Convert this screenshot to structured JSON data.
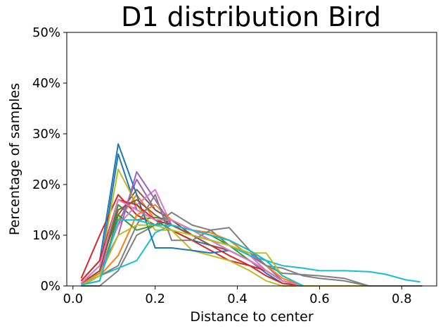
{
  "chart_data": {
    "type": "line",
    "title": "D1 distribution Bird",
    "xlabel": "Distance to center",
    "ylabel": "Percentage of samples",
    "xlim": [
      -0.015,
      0.885
    ],
    "ylim": [
      0,
      50
    ],
    "xticks": [
      0.0,
      0.2,
      0.4,
      0.6,
      0.8
    ],
    "xtick_labels": [
      "0.0",
      "0.2",
      "0.4",
      "0.6",
      "0.8"
    ],
    "yticks": [
      0,
      10,
      20,
      30,
      40,
      50
    ],
    "ytick_labels": [
      "0%",
      "10%",
      "20%",
      "30%",
      "40%",
      "50%"
    ],
    "grid": false,
    "legend": "none",
    "series": [
      {
        "color": "#1f77b4",
        "points": [
          [
            0.02,
            0.5
          ],
          [
            0.065,
            3
          ],
          [
            0.11,
            26
          ],
          [
            0.155,
            15
          ],
          [
            0.2,
            13
          ],
          [
            0.24,
            11
          ],
          [
            0.29,
            9
          ],
          [
            0.335,
            8
          ],
          [
            0.38,
            7
          ],
          [
            0.43,
            5
          ],
          [
            0.47,
            2.5
          ],
          [
            0.51,
            0.5
          ],
          [
            0.56,
            0
          ]
        ]
      },
      {
        "color": "#ff7f0e",
        "points": [
          [
            0.02,
            0.5
          ],
          [
            0.065,
            2.5
          ],
          [
            0.11,
            13
          ],
          [
            0.155,
            18
          ],
          [
            0.2,
            13
          ],
          [
            0.24,
            13
          ],
          [
            0.29,
            11
          ],
          [
            0.335,
            10
          ],
          [
            0.38,
            9
          ],
          [
            0.43,
            6
          ],
          [
            0.47,
            3
          ],
          [
            0.51,
            1
          ],
          [
            0.56,
            0
          ]
        ]
      },
      {
        "color": "#2ca02c",
        "points": [
          [
            0.02,
            0.5
          ],
          [
            0.065,
            3
          ],
          [
            0.11,
            16
          ],
          [
            0.155,
            13
          ],
          [
            0.2,
            13.5
          ],
          [
            0.24,
            13
          ],
          [
            0.29,
            11
          ],
          [
            0.335,
            10
          ],
          [
            0.38,
            8
          ],
          [
            0.43,
            5
          ],
          [
            0.47,
            3
          ],
          [
            0.51,
            1
          ],
          [
            0.56,
            0
          ]
        ]
      },
      {
        "color": "#d62728",
        "points": [
          [
            0.02,
            1.5
          ],
          [
            0.065,
            10
          ],
          [
            0.11,
            18
          ],
          [
            0.155,
            14
          ],
          [
            0.2,
            12
          ],
          [
            0.24,
            11
          ],
          [
            0.29,
            9
          ],
          [
            0.335,
            7
          ],
          [
            0.38,
            5
          ],
          [
            0.43,
            4
          ],
          [
            0.47,
            2
          ],
          [
            0.51,
            0.5
          ],
          [
            0.56,
            0
          ]
        ]
      },
      {
        "color": "#9467bd",
        "points": [
          [
            0.02,
            0.5
          ],
          [
            0.065,
            3
          ],
          [
            0.11,
            12
          ],
          [
            0.155,
            21
          ],
          [
            0.2,
            15
          ],
          [
            0.24,
            13
          ],
          [
            0.29,
            10
          ],
          [
            0.335,
            9
          ],
          [
            0.38,
            8
          ],
          [
            0.43,
            6
          ],
          [
            0.47,
            4
          ],
          [
            0.51,
            1
          ],
          [
            0.56,
            0
          ]
        ]
      },
      {
        "color": "#8c564b",
        "points": [
          [
            0.02,
            0.5
          ],
          [
            0.065,
            4
          ],
          [
            0.11,
            14
          ],
          [
            0.155,
            19
          ],
          [
            0.2,
            15
          ],
          [
            0.24,
            13
          ],
          [
            0.29,
            10
          ],
          [
            0.335,
            9
          ],
          [
            0.38,
            7
          ],
          [
            0.43,
            5
          ],
          [
            0.47,
            3
          ],
          [
            0.51,
            1
          ],
          [
            0.56,
            0
          ]
        ]
      },
      {
        "color": "#e377c2",
        "points": [
          [
            0.02,
            0.5
          ],
          [
            0.065,
            3
          ],
          [
            0.11,
            12
          ],
          [
            0.155,
            16
          ],
          [
            0.2,
            19
          ],
          [
            0.24,
            12
          ],
          [
            0.29,
            10
          ],
          [
            0.335,
            9
          ],
          [
            0.38,
            8
          ],
          [
            0.43,
            6
          ],
          [
            0.47,
            3
          ],
          [
            0.51,
            1
          ],
          [
            0.56,
            0
          ]
        ]
      },
      {
        "color": "#7f7f7f",
        "points": [
          [
            0.02,
            0
          ],
          [
            0.065,
            0
          ],
          [
            0.11,
            3
          ],
          [
            0.155,
            10
          ],
          [
            0.2,
            12
          ],
          [
            0.24,
            14.5
          ],
          [
            0.29,
            12
          ],
          [
            0.335,
            11
          ],
          [
            0.38,
            8
          ],
          [
            0.43,
            6.5
          ],
          [
            0.47,
            4
          ],
          [
            0.51,
            2.5
          ],
          [
            0.6,
            2
          ],
          [
            0.66,
            1.5
          ],
          [
            0.72,
            0
          ],
          [
            0.85,
            0
          ]
        ]
      },
      {
        "color": "#bcbd22",
        "points": [
          [
            0.02,
            0
          ],
          [
            0.065,
            3
          ],
          [
            0.11,
            23
          ],
          [
            0.155,
            16
          ],
          [
            0.2,
            11
          ],
          [
            0.24,
            11
          ],
          [
            0.29,
            7
          ],
          [
            0.335,
            6
          ],
          [
            0.38,
            5
          ],
          [
            0.43,
            3
          ],
          [
            0.47,
            1
          ],
          [
            0.51,
            0
          ],
          [
            0.85,
            0
          ]
        ]
      },
      {
        "color": "#17becf",
        "points": [
          [
            0.02,
            0
          ],
          [
            0.065,
            2
          ],
          [
            0.11,
            3.5
          ],
          [
            0.155,
            5
          ],
          [
            0.2,
            10.5
          ],
          [
            0.24,
            12
          ],
          [
            0.29,
            10
          ],
          [
            0.335,
            9
          ],
          [
            0.38,
            8
          ],
          [
            0.43,
            6
          ],
          [
            0.47,
            5
          ],
          [
            0.51,
            4
          ],
          [
            0.56,
            3.5
          ],
          [
            0.6,
            3
          ],
          [
            0.66,
            3
          ],
          [
            0.72,
            2.8
          ],
          [
            0.76,
            2.3
          ],
          [
            0.81,
            1.2
          ],
          [
            0.845,
            0.8
          ]
        ]
      },
      {
        "color": "#1f77b4",
        "points": [
          [
            0.02,
            1
          ],
          [
            0.065,
            5
          ],
          [
            0.11,
            28
          ],
          [
            0.155,
            18
          ],
          [
            0.2,
            7.5
          ],
          [
            0.24,
            7.5
          ],
          [
            0.29,
            7
          ],
          [
            0.335,
            6.5
          ],
          [
            0.38,
            7
          ],
          [
            0.43,
            5
          ],
          [
            0.47,
            3
          ],
          [
            0.51,
            1
          ],
          [
            0.56,
            0
          ]
        ]
      },
      {
        "color": "#ff7f0e",
        "points": [
          [
            0.02,
            0.5
          ],
          [
            0.065,
            2
          ],
          [
            0.11,
            6
          ],
          [
            0.155,
            14
          ],
          [
            0.2,
            16
          ],
          [
            0.24,
            13
          ],
          [
            0.29,
            11
          ],
          [
            0.335,
            10.5
          ],
          [
            0.38,
            9
          ],
          [
            0.43,
            7
          ],
          [
            0.47,
            4
          ],
          [
            0.51,
            1.5
          ],
          [
            0.56,
            0
          ]
        ]
      },
      {
        "color": "#2ca02c",
        "points": [
          [
            0.02,
            0.2
          ],
          [
            0.065,
            1
          ],
          [
            0.11,
            14
          ],
          [
            0.155,
            11
          ],
          [
            0.2,
            12
          ],
          [
            0.24,
            13
          ],
          [
            0.29,
            11
          ],
          [
            0.335,
            10
          ],
          [
            0.38,
            9
          ],
          [
            0.43,
            7
          ],
          [
            0.47,
            5
          ],
          [
            0.51,
            2
          ],
          [
            0.56,
            0
          ]
        ]
      },
      {
        "color": "#d62728",
        "points": [
          [
            0.02,
            1
          ],
          [
            0.065,
            5
          ],
          [
            0.11,
            17
          ],
          [
            0.155,
            16
          ],
          [
            0.2,
            13
          ],
          [
            0.24,
            12
          ],
          [
            0.29,
            10
          ],
          [
            0.335,
            8
          ],
          [
            0.38,
            6
          ],
          [
            0.43,
            4
          ],
          [
            0.47,
            3
          ],
          [
            0.51,
            1
          ],
          [
            0.56,
            0
          ]
        ]
      },
      {
        "color": "#9467bd",
        "points": [
          [
            0.02,
            0.5
          ],
          [
            0.065,
            3
          ],
          [
            0.11,
            10
          ],
          [
            0.155,
            22.5
          ],
          [
            0.2,
            17
          ],
          [
            0.24,
            12
          ],
          [
            0.29,
            11
          ],
          [
            0.335,
            9
          ],
          [
            0.38,
            7
          ],
          [
            0.43,
            5
          ],
          [
            0.47,
            3
          ],
          [
            0.51,
            1
          ],
          [
            0.56,
            0
          ]
        ]
      },
      {
        "color": "#8c564b",
        "points": [
          [
            0.02,
            0.5
          ],
          [
            0.065,
            3
          ],
          [
            0.11,
            15
          ],
          [
            0.155,
            17
          ],
          [
            0.2,
            14
          ],
          [
            0.24,
            12
          ],
          [
            0.29,
            10
          ],
          [
            0.335,
            8
          ],
          [
            0.38,
            7
          ],
          [
            0.43,
            5
          ],
          [
            0.47,
            3
          ],
          [
            0.51,
            1
          ],
          [
            0.56,
            0
          ]
        ]
      },
      {
        "color": "#e377c2",
        "points": [
          [
            0.02,
            0.5
          ],
          [
            0.065,
            4
          ],
          [
            0.11,
            17
          ],
          [
            0.155,
            15
          ],
          [
            0.2,
            13
          ],
          [
            0.24,
            13
          ],
          [
            0.29,
            11
          ],
          [
            0.335,
            9
          ],
          [
            0.38,
            7
          ],
          [
            0.43,
            5
          ],
          [
            0.47,
            3
          ],
          [
            0.51,
            1
          ],
          [
            0.56,
            0
          ]
        ]
      },
      {
        "color": "#7f7f7f",
        "points": [
          [
            0.02,
            0.2
          ],
          [
            0.065,
            2
          ],
          [
            0.11,
            4
          ],
          [
            0.155,
            12
          ],
          [
            0.2,
            18
          ],
          [
            0.24,
            9
          ],
          [
            0.29,
            9
          ],
          [
            0.335,
            11
          ],
          [
            0.38,
            11.5
          ],
          [
            0.43,
            7
          ],
          [
            0.47,
            4
          ],
          [
            0.51,
            3.5
          ],
          [
            0.56,
            2
          ],
          [
            0.6,
            1.5
          ],
          [
            0.66,
            1
          ],
          [
            0.72,
            0
          ],
          [
            0.85,
            0
          ]
        ]
      },
      {
        "color": "#bcbd22",
        "points": [
          [
            0.02,
            0.2
          ],
          [
            0.065,
            2
          ],
          [
            0.11,
            10
          ],
          [
            0.155,
            12
          ],
          [
            0.2,
            12
          ],
          [
            0.24,
            11
          ],
          [
            0.29,
            10
          ],
          [
            0.335,
            9
          ],
          [
            0.38,
            8
          ],
          [
            0.43,
            6.5
          ],
          [
            0.47,
            6.5
          ],
          [
            0.51,
            2
          ],
          [
            0.56,
            0
          ]
        ]
      },
      {
        "color": "#17becf",
        "points": [
          [
            0.02,
            0.2
          ],
          [
            0.065,
            1
          ],
          [
            0.11,
            13
          ],
          [
            0.155,
            13
          ],
          [
            0.2,
            12
          ],
          [
            0.24,
            12
          ],
          [
            0.29,
            11
          ],
          [
            0.335,
            10
          ],
          [
            0.38,
            9
          ],
          [
            0.43,
            7
          ],
          [
            0.47,
            5
          ],
          [
            0.51,
            2
          ],
          [
            0.56,
            0
          ]
        ]
      }
    ]
  }
}
